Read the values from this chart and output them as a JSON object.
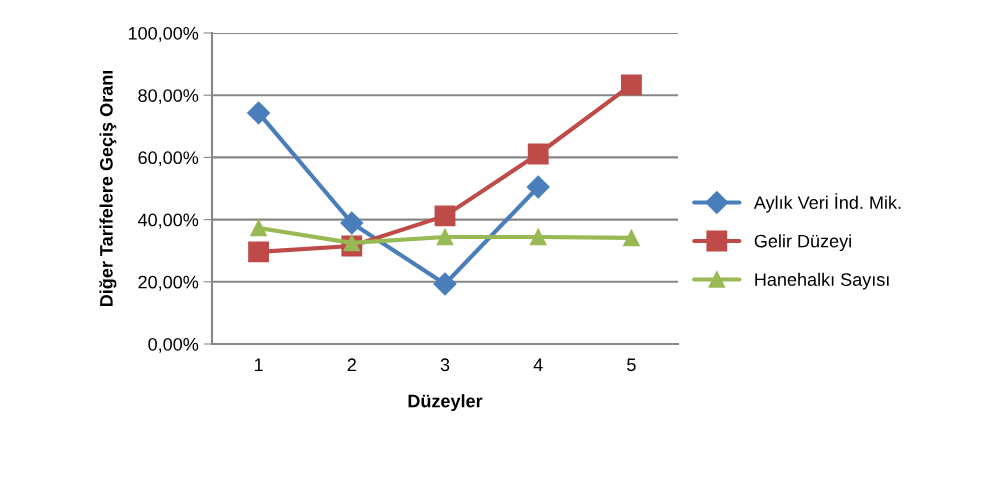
{
  "chart_data": {
    "type": "line",
    "xlabel": "Düzeyler",
    "ylabel": "Diğer Tarifelere Geçiş Oranı",
    "categories": [
      "1",
      "2",
      "3",
      "4",
      "5"
    ],
    "series": [
      {
        "name": "Aylık Veri İnd. Mik.",
        "color": "#4a7ebb",
        "marker": "diamond",
        "values": [
          74.3,
          38.9,
          19.3,
          50.5,
          null
        ]
      },
      {
        "name": "Gelir Düzeyi",
        "color": "#be4b48",
        "marker": "square",
        "values": [
          29.6,
          31.5,
          41.2,
          61.1,
          83.3
        ]
      },
      {
        "name": "Hanehalkı Sayısı",
        "color": "#98b954",
        "marker": "triangle",
        "values": [
          37.3,
          32.5,
          34.4,
          34.4,
          34.1
        ]
      }
    ],
    "ylim": [
      0,
      100
    ],
    "yticks": [
      {
        "value": 0,
        "label": "0,00%"
      },
      {
        "value": 20,
        "label": "20,00%"
      },
      {
        "value": 40,
        "label": "40,00%"
      },
      {
        "value": 60,
        "label": "60,00%"
      },
      {
        "value": 80,
        "label": "80,00%"
      },
      {
        "value": 100,
        "label": "100,00%"
      }
    ],
    "grid": "y",
    "legend": "right",
    "line_style": "solid"
  }
}
